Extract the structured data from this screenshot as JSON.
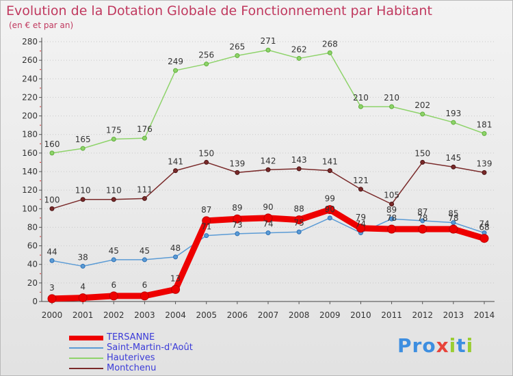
{
  "title": "Evolution de la Dotation Globale de Fonctionnement par Habitant",
  "subtitle": "(en € et par an)",
  "brand": {
    "prefix": "Pro",
    "x": "x",
    "i1": "i",
    "t": "t",
    "i2": "i"
  },
  "chart_data": {
    "type": "line",
    "title": "Evolution de la Dotation Globale de Fonctionnement par Habitant",
    "subtitle": "(en € et par an)",
    "xlabel": "",
    "ylabel": "",
    "ylim": [
      0,
      280
    ],
    "yticks": [
      0,
      20,
      40,
      60,
      80,
      100,
      120,
      140,
      160,
      180,
      200,
      220,
      240,
      260,
      280
    ],
    "categories": [
      "2000",
      "2001",
      "2002",
      "2003",
      "2004",
      "2005",
      "2006",
      "2007",
      "2008",
      "2009",
      "2010",
      "2011",
      "2012",
      "2013",
      "2014"
    ],
    "series": [
      {
        "name": "TERSANNE",
        "color": "#ee0000",
        "values": [
          3,
          4,
          6,
          6,
          13,
          87,
          89,
          90,
          88,
          99,
          79,
          78,
          78,
          78,
          68
        ]
      },
      {
        "name": "Saint-Martin-d'Août",
        "color": "#5b9bd5",
        "values": [
          44,
          38,
          45,
          45,
          48,
          71,
          73,
          74,
          75,
          90,
          74,
          89,
          87,
          85,
          74
        ]
      },
      {
        "name": "Hauterives",
        "color": "#8ed36a",
        "values": [
          160,
          165,
          175,
          176,
          249,
          256,
          265,
          271,
          262,
          268,
          210,
          210,
          202,
          193,
          181
        ]
      },
      {
        "name": "Montchenu",
        "color": "#7a2a2a",
        "values": [
          100,
          110,
          110,
          111,
          141,
          150,
          139,
          142,
          143,
          141,
          121,
          105,
          150,
          145,
          139
        ]
      }
    ],
    "legend_position": "bottom-left",
    "grid": "horizontal-dotted"
  }
}
